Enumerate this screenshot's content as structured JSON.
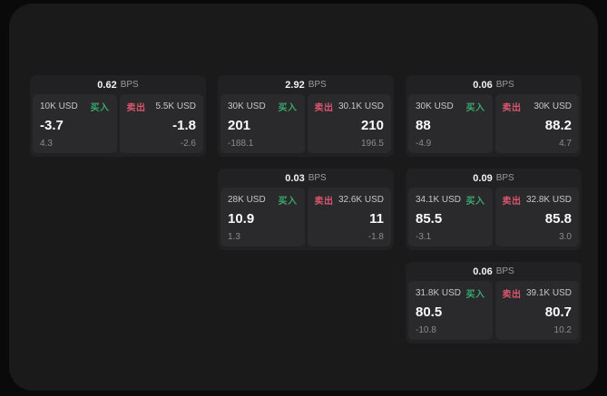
{
  "labels": {
    "bps_unit": "BPS",
    "buy_button": "买入",
    "sell_button": "卖出"
  },
  "colors": {
    "page_bg": "#0a0a0a",
    "panel_bg": "#1a1a1b",
    "card_bg": "#212123",
    "subpanel_bg": "#2a2a2c",
    "buy": "#3aa76d",
    "sell": "#d8566e"
  },
  "cards": [
    {
      "bps": "0.62",
      "grid": {
        "row": 1,
        "col": 1
      },
      "buy": {
        "amount": "10K USD",
        "price": "-3.7",
        "sub": "4.3"
      },
      "sell": {
        "amount": "5.5K USD",
        "price": "-1.8",
        "sub": "-2.6"
      }
    },
    {
      "bps": "2.92",
      "grid": {
        "row": 1,
        "col": 2
      },
      "buy": {
        "amount": "30K USD",
        "price": "201",
        "sub": "-188.1"
      },
      "sell": {
        "amount": "30.1K USD",
        "price": "210",
        "sub": "196.5"
      }
    },
    {
      "bps": "0.06",
      "grid": {
        "row": 1,
        "col": 3
      },
      "buy": {
        "amount": "30K USD",
        "price": "88",
        "sub": "-4.9"
      },
      "sell": {
        "amount": "30K USD",
        "price": "88.2",
        "sub": "4.7"
      }
    },
    {
      "bps": "0.03",
      "grid": {
        "row": 2,
        "col": 2
      },
      "buy": {
        "amount": "28K USD",
        "price": "10.9",
        "sub": "1.3"
      },
      "sell": {
        "amount": "32.6K USD",
        "price": "11",
        "sub": "-1.8"
      }
    },
    {
      "bps": "0.09",
      "grid": {
        "row": 2,
        "col": 3
      },
      "buy": {
        "amount": "34.1K USD",
        "price": "85.5",
        "sub": "-3.1"
      },
      "sell": {
        "amount": "32.8K USD",
        "price": "85.8",
        "sub": "3.0"
      }
    },
    {
      "bps": "0.06",
      "grid": {
        "row": 3,
        "col": 3
      },
      "buy": {
        "amount": "31.8K USD",
        "price": "80.5",
        "sub": "-10.8"
      },
      "sell": {
        "amount": "39.1K USD",
        "price": "80.7",
        "sub": "10.2"
      }
    }
  ]
}
